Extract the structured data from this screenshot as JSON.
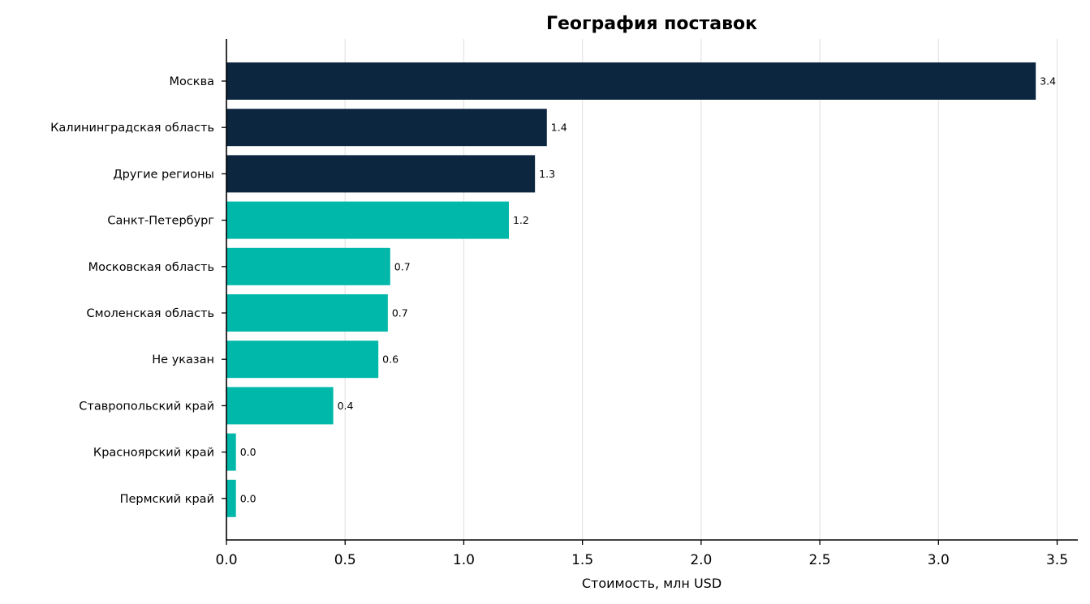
{
  "chart_data": {
    "type": "bar",
    "orientation": "horizontal",
    "title": "География поставок",
    "xlabel": "Стоимость, млн USD",
    "ylabel": "",
    "xlim": [
      0,
      3.58
    ],
    "xticks": [
      0.0,
      0.5,
      1.0,
      1.5,
      2.0,
      2.5,
      3.0,
      3.5
    ],
    "xtick_labels": [
      "0.0",
      "0.5",
      "1.0",
      "1.5",
      "2.0",
      "2.5",
      "3.0",
      "3.5"
    ],
    "grid": "x",
    "categories": [
      "Москва",
      "Калининградская область",
      "Другие регионы",
      "Санкт-Петербург",
      "Московская область",
      "Смоленская область",
      "Не указан",
      "Ставропольский край",
      "Красноярский край",
      "Пермский край"
    ],
    "values": [
      3.41,
      1.35,
      1.3,
      1.19,
      0.69,
      0.68,
      0.64,
      0.45,
      0.04,
      0.04
    ],
    "value_labels": [
      "3.4",
      "1.4",
      "1.3",
      "1.2",
      "0.7",
      "0.7",
      "0.6",
      "0.4",
      "0.0",
      "0.0"
    ],
    "colors": {
      "top": "#0c2640",
      "rest": "#00b8aa",
      "grid": "#e6e6e6"
    },
    "top_n_highlighted": 3
  }
}
